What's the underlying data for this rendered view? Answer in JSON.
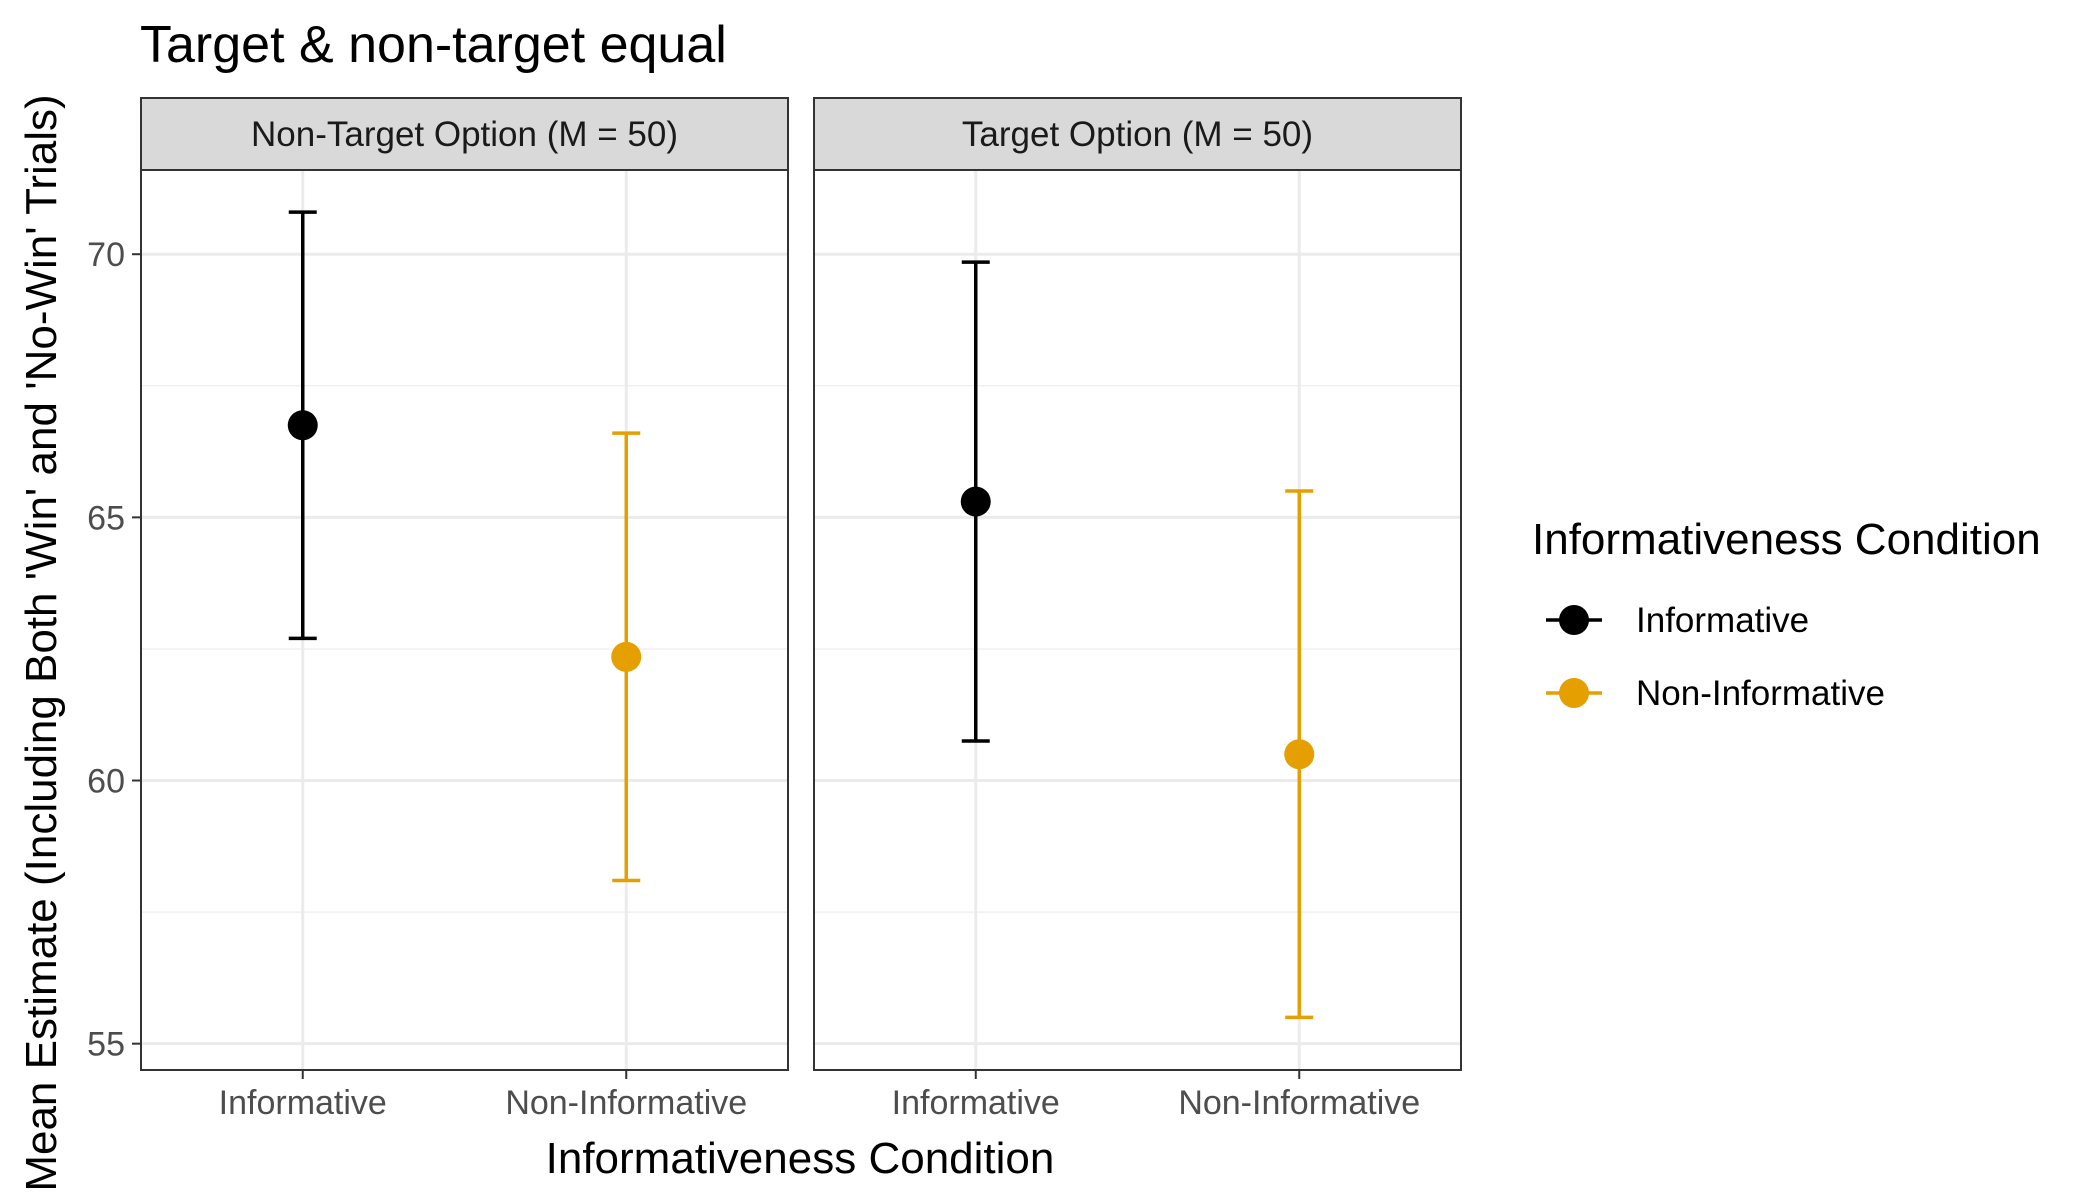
{
  "chart_data": {
    "type": "scatter",
    "subtype": "point-with-error-bars",
    "title": "Target & non-target equal",
    "xlabel": "Informativeness Condition",
    "ylabel": "Mean Estimate (Including Both 'Win' and 'No-Win' Trials)",
    "categories": [
      "Informative",
      "Non-Informative"
    ],
    "ylim": [
      54.5,
      71.6
    ],
    "y_ticks": [
      55,
      60,
      65,
      70
    ],
    "grid": true,
    "legend_position": "right",
    "legend_title": "Informativeness Condition",
    "series_colors": {
      "Informative": "#000000",
      "Non-Informative": "#E69F00"
    },
    "facets": [
      {
        "label": "Non-Target Option (M = 50)",
        "points": [
          {
            "category": "Informative",
            "mean": 66.75,
            "lower": 62.7,
            "upper": 70.8
          },
          {
            "category": "Non-Informative",
            "mean": 62.35,
            "lower": 58.1,
            "upper": 66.6
          }
        ]
      },
      {
        "label": "Target Option (M = 50)",
        "points": [
          {
            "category": "Informative",
            "mean": 65.3,
            "lower": 60.75,
            "upper": 69.85
          },
          {
            "category": "Non-Informative",
            "mean": 60.5,
            "lower": 55.5,
            "upper": 65.5
          }
        ]
      }
    ]
  }
}
